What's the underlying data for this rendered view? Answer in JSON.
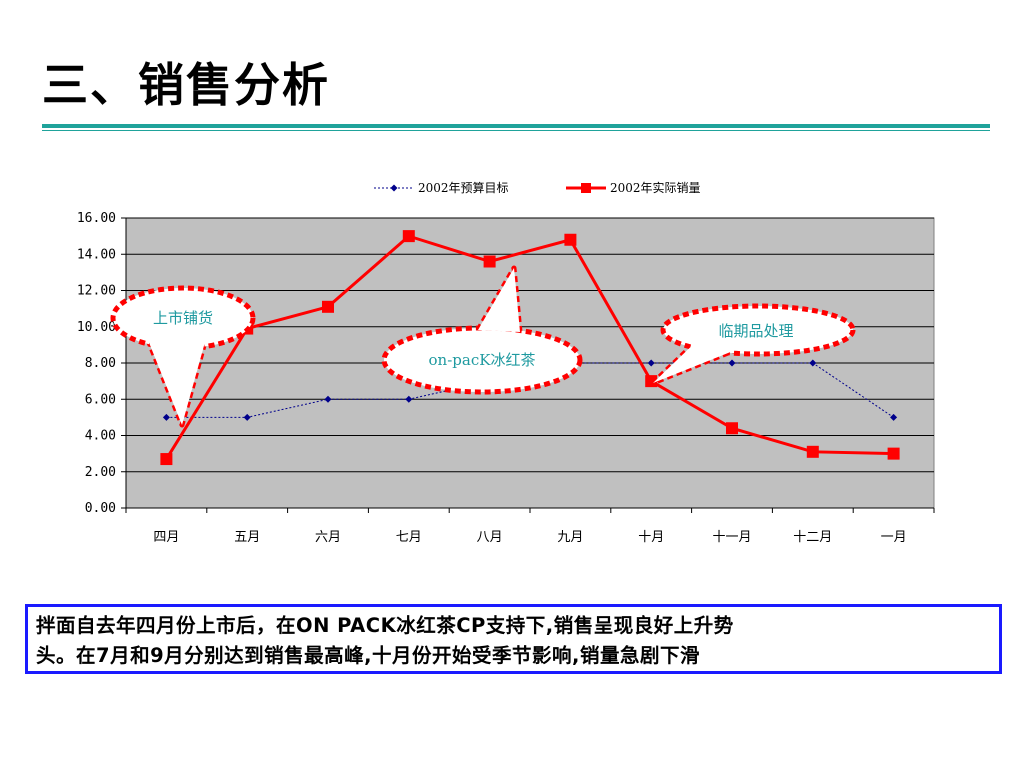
{
  "slide": {
    "title": "三、销售分析"
  },
  "caption": {
    "lines": [
      "拌面自去年四月份上市后，在ON PACK冰红茶CP支持下,销售呈现良好上升势",
      "头。在7月和9月分别达到销售最高峰,十月份开始受季节影响,销量急剧下滑"
    ],
    "border_color": "#1a1aff"
  },
  "chart_data": {
    "type": "line",
    "categories": [
      "四月",
      "五月",
      "六月",
      "七月",
      "八月",
      "九月",
      "十月",
      "十一月",
      "十二月",
      "一月"
    ],
    "ylim": [
      0,
      16
    ],
    "yticks": [
      "0.00",
      "2.00",
      "4.00",
      "6.00",
      "8.00",
      "10.00",
      "12.00",
      "14.00",
      "16.00"
    ],
    "plot_background": "#c0c0c0",
    "grid": true,
    "legend_position": "top",
    "series": [
      {
        "name": "2002年预算目标",
        "color": "#00008b",
        "style": "dotted-diamond",
        "values": [
          5,
          5,
          6,
          6,
          7,
          8,
          8,
          8,
          8,
          5
        ]
      },
      {
        "name": "2002年实际销量",
        "color": "#ff0000",
        "style": "solid-square",
        "values": [
          2.7,
          9.9,
          11.1,
          15.0,
          13.6,
          14.8,
          7.0,
          4.4,
          3.1,
          3.0
        ]
      }
    ],
    "annotations": [
      {
        "text": "上市铺货",
        "target_category": "四月"
      },
      {
        "text": "on-pacK冰红茶",
        "target_category": "八月"
      },
      {
        "text": "临期品处理",
        "target_category": "十月"
      }
    ]
  }
}
